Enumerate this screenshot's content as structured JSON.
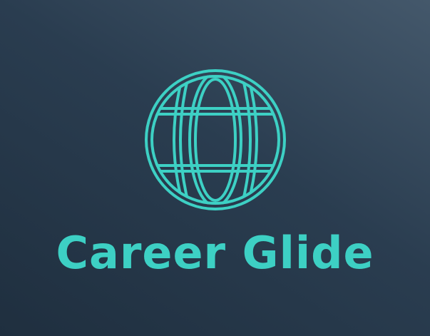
{
  "logo": {
    "icon": "globe-icon",
    "brand_name": "Career Glide"
  },
  "colors": {
    "accent": "#3dd0c4",
    "background_dark": "#1f2f3f",
    "background_light": "#44586b"
  }
}
